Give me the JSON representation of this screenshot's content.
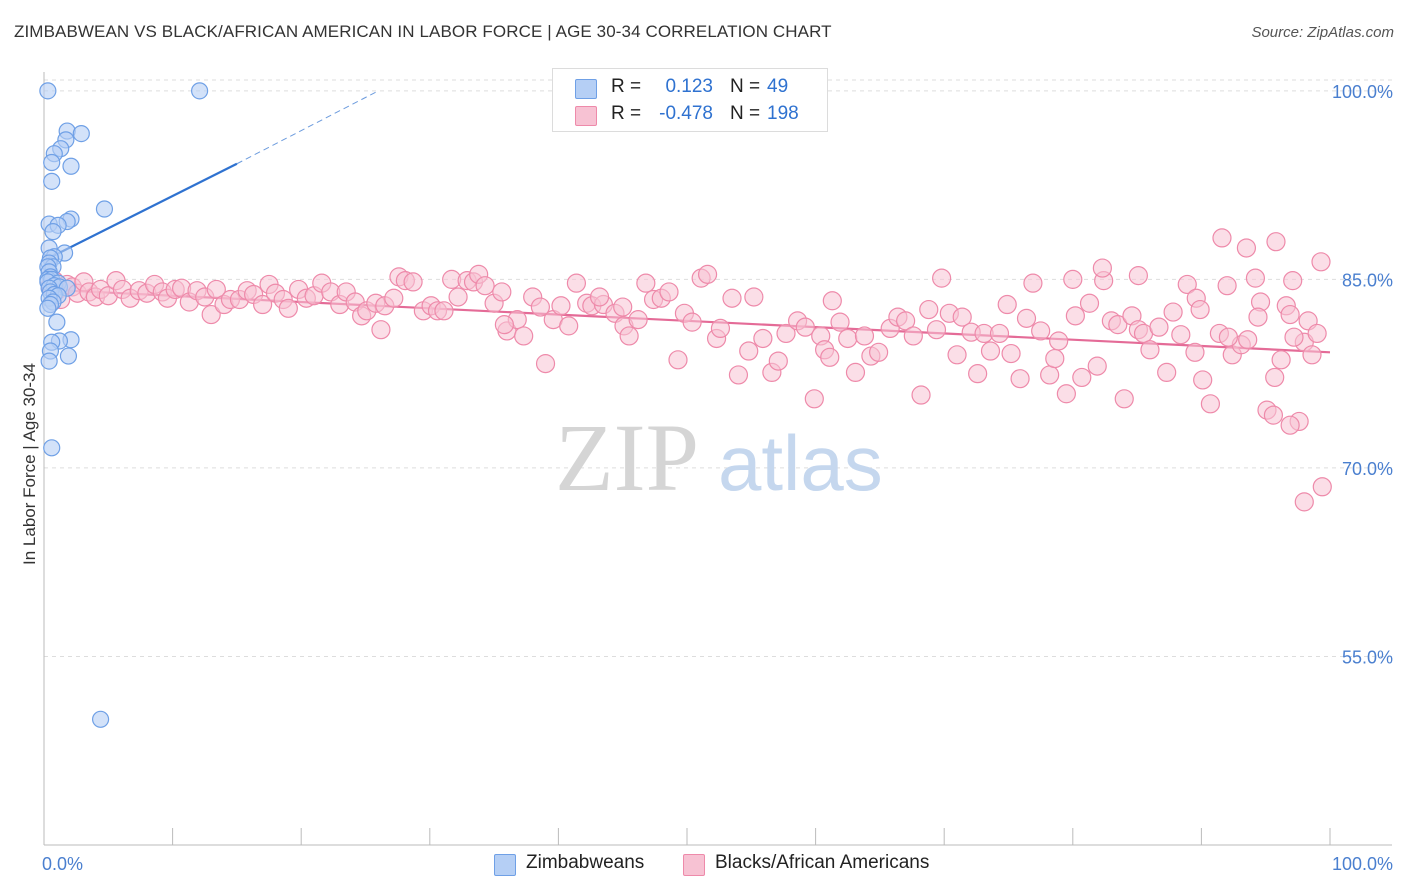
{
  "title": "ZIMBABWEAN VS BLACK/AFRICAN AMERICAN IN LABOR FORCE | AGE 30-34 CORRELATION CHART",
  "source": "Source: ZipAtlas.com",
  "watermark": {
    "zip": "ZIP",
    "atlas": "atlas"
  },
  "legend": {
    "series1": {
      "r_label": "R =",
      "r_value": "0.123",
      "n_label": "N =",
      "n_value": "49"
    },
    "series2": {
      "r_label": "R =",
      "r_value": "-0.478",
      "n_label": "N =",
      "n_value": "198"
    }
  },
  "colors": {
    "blue": "#6fa0e6",
    "blue_fill": "#b5cff5",
    "blue_line": "#2f72d0",
    "pink": "#ee8aaa",
    "pink_fill": "#f7c2d3",
    "pink_line": "#e46b97",
    "axis_text": "#4a7fcf",
    "grid": "#dddddd"
  },
  "chart_data": {
    "type": "scatter",
    "title": "ZIMBABWEAN VS BLACK/AFRICAN AMERICAN IN LABOR FORCE | AGE 30-34 CORRELATION CHART",
    "xlabel": "",
    "ylabel": "In Labor Force | Age 30-34",
    "x_tick_labels": [
      "0.0%",
      "100.0%"
    ],
    "y_tick_labels": [
      "100.0%",
      "85.0%",
      "70.0%",
      "55.0%"
    ],
    "y_ticks": [
      100,
      85,
      70,
      55
    ],
    "xlim": [
      0,
      100
    ],
    "ylim": [
      40.0,
      101.5
    ],
    "grid": true,
    "legend_position": "bottom",
    "series": [
      {
        "name": "Zimbabweans",
        "color": "#6fa0e6",
        "trend": {
          "x": [
            0,
            15
          ],
          "y": [
            86.5,
            94.2
          ],
          "dashed_to": [
            26,
            100
          ]
        },
        "points": [
          [
            0.3,
            100
          ],
          [
            12.1,
            100
          ],
          [
            1.8,
            96.8
          ],
          [
            2.9,
            96.6
          ],
          [
            1.7,
            96.1
          ],
          [
            1.3,
            95.4
          ],
          [
            0.8,
            95.0
          ],
          [
            0.6,
            94.3
          ],
          [
            2.1,
            94.0
          ],
          [
            0.6,
            92.8
          ],
          [
            4.7,
            90.6
          ],
          [
            2.1,
            89.8
          ],
          [
            1.8,
            89.6
          ],
          [
            0.4,
            89.4
          ],
          [
            1.1,
            89.3
          ],
          [
            0.7,
            88.8
          ],
          [
            0.4,
            87.5
          ],
          [
            1.6,
            87.1
          ],
          [
            0.8,
            86.8
          ],
          [
            0.5,
            86.7
          ],
          [
            0.4,
            86.3
          ],
          [
            0.7,
            86.0
          ],
          [
            0.3,
            86.0
          ],
          [
            0.4,
            85.6
          ],
          [
            0.5,
            85.2
          ],
          [
            0.3,
            85.0
          ],
          [
            0.6,
            85.0
          ],
          [
            0.3,
            84.8
          ],
          [
            1.1,
            84.7
          ],
          [
            0.8,
            84.5
          ],
          [
            1.2,
            84.4
          ],
          [
            0.4,
            84.3
          ],
          [
            1.8,
            84.3
          ],
          [
            0.5,
            84.0
          ],
          [
            0.8,
            83.8
          ],
          [
            1.1,
            83.7
          ],
          [
            0.4,
            83.5
          ],
          [
            0.7,
            83.2
          ],
          [
            0.5,
            83.0
          ],
          [
            0.3,
            82.7
          ],
          [
            1.0,
            81.6
          ],
          [
            2.1,
            80.2
          ],
          [
            1.2,
            80.1
          ],
          [
            0.6,
            80.0
          ],
          [
            0.5,
            79.3
          ],
          [
            1.9,
            78.9
          ],
          [
            0.4,
            78.5
          ],
          [
            0.6,
            71.6
          ],
          [
            4.4,
            50.0
          ]
        ]
      },
      {
        "name": "Blacks/African Americans",
        "color": "#ee8aaa",
        "trend": {
          "x": [
            0,
            100
          ],
          "y": [
            84.2,
            79.2
          ]
        },
        "points": [
          [
            0.5,
            84.5
          ],
          [
            0.8,
            84.9
          ],
          [
            1.0,
            84.1
          ],
          [
            1.3,
            83.4
          ],
          [
            1.8,
            84.6
          ],
          [
            2.2,
            84.4
          ],
          [
            2.6,
            83.9
          ],
          [
            3.1,
            84.8
          ],
          [
            3.5,
            84.0
          ],
          [
            4.0,
            83.6
          ],
          [
            4.4,
            84.2
          ],
          [
            5.0,
            83.7
          ],
          [
            5.6,
            84.9
          ],
          [
            6.1,
            84.2
          ],
          [
            6.7,
            83.5
          ],
          [
            7.4,
            84.1
          ],
          [
            8.0,
            83.9
          ],
          [
            8.6,
            84.6
          ],
          [
            9.2,
            84.0
          ],
          [
            9.6,
            83.5
          ],
          [
            10.2,
            84.2
          ],
          [
            10.7,
            84.3
          ],
          [
            11.3,
            83.2
          ],
          [
            11.9,
            84.1
          ],
          [
            12.5,
            83.6
          ],
          [
            13.0,
            82.2
          ],
          [
            13.4,
            84.2
          ],
          [
            14.0,
            83.0
          ],
          [
            14.5,
            83.4
          ],
          [
            15.2,
            83.4
          ],
          [
            15.8,
            84.1
          ],
          [
            16.3,
            83.8
          ],
          [
            17.0,
            83.0
          ],
          [
            17.5,
            84.6
          ],
          [
            18.0,
            83.9
          ],
          [
            18.6,
            83.4
          ],
          [
            19.0,
            82.7
          ],
          [
            19.8,
            84.2
          ],
          [
            20.4,
            83.5
          ],
          [
            21.0,
            83.7
          ],
          [
            21.6,
            84.7
          ],
          [
            22.3,
            84.0
          ],
          [
            23.0,
            83.0
          ],
          [
            23.5,
            84.0
          ],
          [
            24.2,
            83.2
          ],
          [
            24.7,
            82.1
          ],
          [
            25.1,
            82.5
          ],
          [
            25.8,
            83.1
          ],
          [
            26.5,
            82.9
          ],
          [
            27.2,
            83.5
          ],
          [
            27.6,
            85.2
          ],
          [
            28.1,
            84.9
          ],
          [
            28.7,
            84.8
          ],
          [
            29.5,
            82.5
          ],
          [
            30.1,
            82.9
          ],
          [
            30.6,
            82.5
          ],
          [
            31.1,
            82.5
          ],
          [
            31.7,
            85.0
          ],
          [
            32.2,
            83.6
          ],
          [
            32.9,
            84.9
          ],
          [
            33.4,
            84.8
          ],
          [
            33.8,
            85.4
          ],
          [
            34.3,
            84.5
          ],
          [
            35.0,
            83.1
          ],
          [
            35.6,
            84.0
          ],
          [
            36.0,
            80.9
          ],
          [
            36.8,
            81.8
          ],
          [
            37.3,
            80.5
          ],
          [
            38.0,
            83.6
          ],
          [
            38.6,
            82.8
          ],
          [
            39.0,
            78.3
          ],
          [
            39.6,
            81.8
          ],
          [
            40.2,
            82.9
          ],
          [
            40.8,
            81.3
          ],
          [
            41.4,
            84.7
          ],
          [
            42.2,
            83.1
          ],
          [
            42.6,
            82.9
          ],
          [
            43.5,
            83.0
          ],
          [
            44.4,
            82.3
          ],
          [
            45.1,
            81.3
          ],
          [
            45.5,
            80.5
          ],
          [
            46.2,
            81.8
          ],
          [
            46.8,
            84.7
          ],
          [
            47.4,
            83.4
          ],
          [
            48.0,
            83.5
          ],
          [
            48.6,
            84.0
          ],
          [
            49.3,
            78.6
          ],
          [
            49.8,
            82.3
          ],
          [
            50.4,
            81.6
          ],
          [
            51.1,
            85.1
          ],
          [
            51.6,
            85.4
          ],
          [
            52.3,
            80.3
          ],
          [
            52.6,
            81.1
          ],
          [
            53.5,
            83.5
          ],
          [
            54.0,
            77.4
          ],
          [
            54.8,
            79.3
          ],
          [
            55.2,
            83.6
          ],
          [
            55.9,
            80.3
          ],
          [
            56.6,
            77.6
          ],
          [
            57.1,
            78.5
          ],
          [
            57.7,
            80.7
          ],
          [
            58.6,
            81.7
          ],
          [
            59.2,
            81.2
          ],
          [
            59.9,
            75.5
          ],
          [
            60.4,
            80.5
          ],
          [
            60.7,
            79.4
          ],
          [
            61.3,
            83.3
          ],
          [
            61.9,
            81.6
          ],
          [
            62.5,
            80.3
          ],
          [
            63.1,
            77.6
          ],
          [
            63.8,
            80.5
          ],
          [
            64.3,
            78.9
          ],
          [
            64.9,
            79.2
          ],
          [
            65.8,
            81.1
          ],
          [
            66.4,
            82.0
          ],
          [
            67.0,
            81.7
          ],
          [
            67.6,
            80.5
          ],
          [
            68.2,
            75.8
          ],
          [
            68.8,
            82.6
          ],
          [
            69.4,
            81.0
          ],
          [
            69.8,
            85.1
          ],
          [
            70.4,
            82.3
          ],
          [
            71.0,
            79.0
          ],
          [
            71.4,
            82.0
          ],
          [
            72.1,
            80.8
          ],
          [
            72.6,
            77.5
          ],
          [
            73.1,
            80.7
          ],
          [
            73.6,
            79.3
          ],
          [
            74.3,
            80.7
          ],
          [
            74.9,
            83.0
          ],
          [
            75.2,
            79.1
          ],
          [
            75.9,
            77.1
          ],
          [
            76.4,
            81.9
          ],
          [
            76.9,
            84.7
          ],
          [
            77.5,
            80.9
          ],
          [
            78.2,
            77.4
          ],
          [
            78.6,
            78.7
          ],
          [
            78.9,
            80.1
          ],
          [
            79.5,
            75.9
          ],
          [
            80.2,
            82.1
          ],
          [
            80.7,
            77.2
          ],
          [
            81.3,
            83.1
          ],
          [
            81.9,
            78.1
          ],
          [
            82.4,
            84.9
          ],
          [
            83.0,
            81.7
          ],
          [
            83.5,
            81.4
          ],
          [
            84.0,
            75.5
          ],
          [
            84.6,
            82.1
          ],
          [
            85.1,
            81.0
          ],
          [
            85.5,
            80.7
          ],
          [
            86.0,
            79.4
          ],
          [
            86.7,
            81.2
          ],
          [
            87.3,
            77.6
          ],
          [
            87.8,
            82.4
          ],
          [
            88.4,
            80.6
          ],
          [
            88.9,
            84.6
          ],
          [
            89.6,
            83.5
          ],
          [
            90.1,
            77.0
          ],
          [
            90.7,
            75.1
          ],
          [
            91.4,
            80.7
          ],
          [
            92.0,
            84.5
          ],
          [
            92.4,
            79.0
          ],
          [
            93.1,
            79.8
          ],
          [
            93.6,
            80.2
          ],
          [
            94.2,
            85.1
          ],
          [
            94.6,
            83.2
          ],
          [
            95.1,
            74.6
          ],
          [
            95.7,
            77.2
          ],
          [
            96.2,
            78.6
          ],
          [
            96.6,
            82.9
          ],
          [
            97.1,
            84.9
          ],
          [
            97.6,
            73.7
          ],
          [
            98.0,
            80.0
          ],
          [
            98.3,
            81.7
          ],
          [
            98.6,
            79.0
          ],
          [
            99.0,
            80.7
          ],
          [
            99.3,
            86.4
          ],
          [
            61.1,
            78.8
          ],
          [
            89.5,
            79.2
          ],
          [
            91.6,
            88.3
          ],
          [
            93.5,
            87.5
          ],
          [
            95.8,
            88.0
          ],
          [
            85.1,
            85.3
          ],
          [
            82.3,
            85.9
          ],
          [
            80.0,
            85.0
          ],
          [
            43.2,
            83.6
          ],
          [
            35.8,
            81.4
          ],
          [
            26.2,
            81.0
          ],
          [
            92.1,
            80.4
          ],
          [
            94.4,
            82.0
          ],
          [
            96.9,
            82.2
          ],
          [
            97.2,
            80.4
          ],
          [
            98.0,
            67.3
          ],
          [
            95.6,
            74.2
          ],
          [
            96.9,
            73.4
          ],
          [
            99.4,
            68.5
          ],
          [
            89.9,
            82.6
          ],
          [
            45.0,
            82.8
          ]
        ]
      }
    ]
  }
}
